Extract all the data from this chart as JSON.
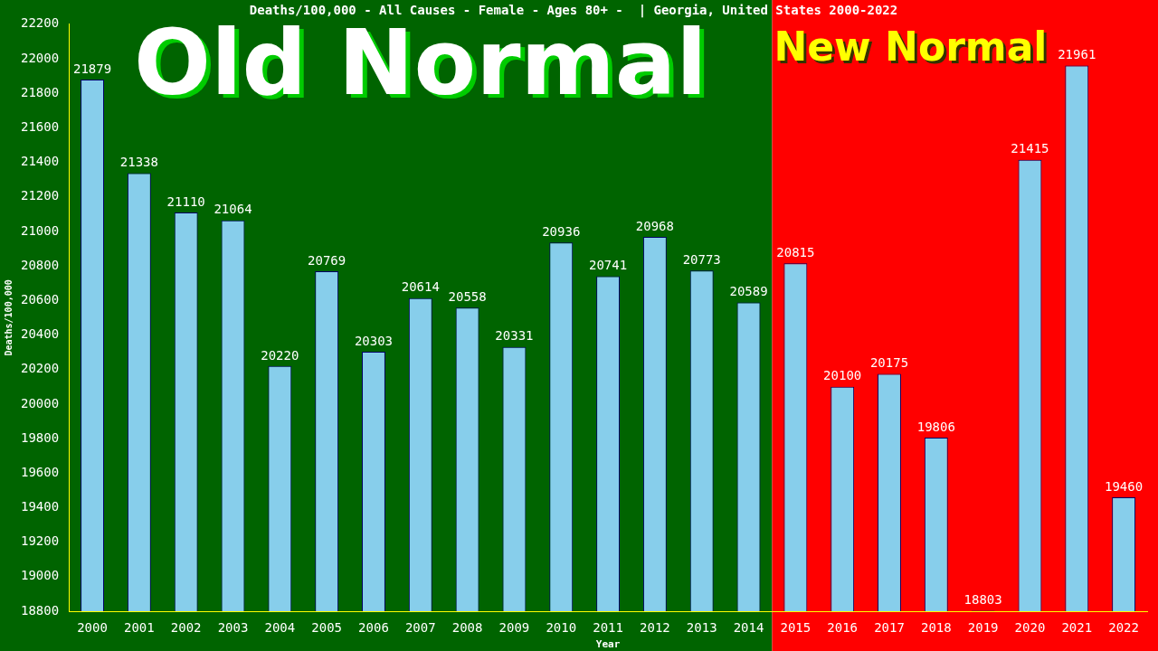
{
  "chart_data": {
    "type": "bar",
    "title": "Deaths/100,000 - All Causes - Female - Ages 80+ -  | Georgia, United States 2000-2022",
    "xlabel": "Year",
    "ylabel": "Deaths/100,000",
    "categories": [
      "2000",
      "2001",
      "2002",
      "2003",
      "2004",
      "2005",
      "2006",
      "2007",
      "2008",
      "2009",
      "2010",
      "2011",
      "2012",
      "2013",
      "2014",
      "2015",
      "2016",
      "2017",
      "2018",
      "2019",
      "2020",
      "2021",
      "2022"
    ],
    "values": [
      21879,
      21338,
      21110,
      21064,
      20220,
      20769,
      20303,
      20614,
      20558,
      20331,
      20936,
      20741,
      20968,
      20773,
      20589,
      20815,
      20100,
      20175,
      19806,
      18803,
      21415,
      21961,
      19460
    ],
    "color": "#87ceeb",
    "ylim": [
      18800,
      22200
    ],
    "yticks": [
      18800,
      19000,
      19200,
      19400,
      19600,
      19800,
      20000,
      20200,
      20400,
      20600,
      20800,
      21000,
      21200,
      21400,
      21600,
      21800,
      22000,
      22200
    ],
    "bands": [
      {
        "axis": "x",
        "from": "2000",
        "to": "2014",
        "label": "Old Normal",
        "color": "#006400"
      },
      {
        "axis": "x",
        "from": "2015",
        "to": "2022",
        "label": "New Normal",
        "color": "#ff0000"
      }
    ],
    "data_labels": true,
    "grid": false,
    "legend": false
  }
}
